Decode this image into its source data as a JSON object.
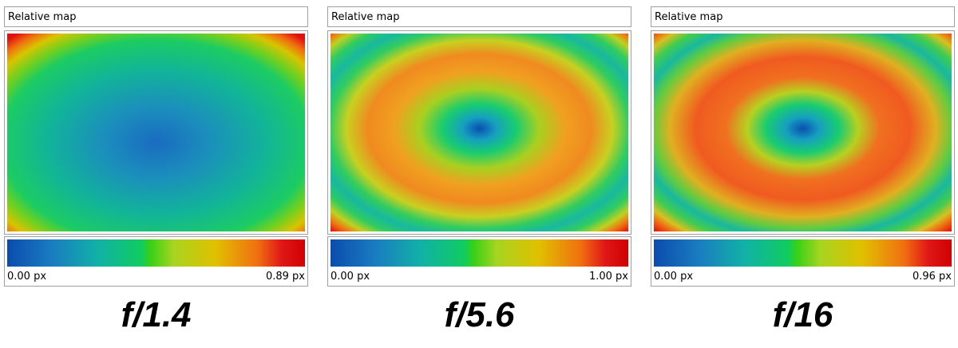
{
  "panels": [
    {
      "header": "Relative map",
      "min_label": "0.00 px",
      "max_label": "0.89 px",
      "caption": "f/1.4"
    },
    {
      "header": "Relative map",
      "min_label": "0.00 px",
      "max_label": "1.00 px",
      "caption": "f/5.6"
    },
    {
      "header": "Relative map",
      "min_label": "0.00 px",
      "max_label": "0.96 px",
      "caption": "f/16"
    }
  ]
}
